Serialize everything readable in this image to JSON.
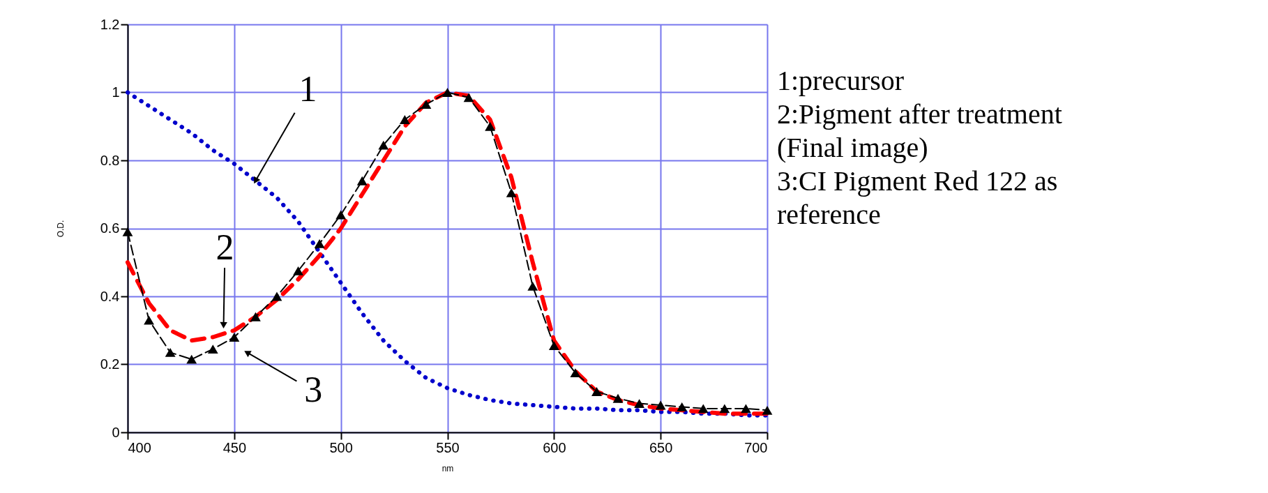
{
  "chart_data": {
    "type": "line",
    "xlabel": "nm",
    "ylabel": "O.D.",
    "x": [
      400,
      410,
      420,
      430,
      440,
      450,
      460,
      470,
      480,
      490,
      500,
      510,
      520,
      530,
      540,
      550,
      560,
      570,
      580,
      590,
      600,
      610,
      620,
      630,
      640,
      650,
      660,
      670,
      680,
      690,
      700
    ],
    "series": [
      {
        "color": "#0000cc",
        "line_style": "dotted",
        "marker": "none",
        "values": [
          1.0,
          0.96,
          0.92,
          0.88,
          0.83,
          0.79,
          0.74,
          0.69,
          0.62,
          0.53,
          0.44,
          0.35,
          0.27,
          0.21,
          0.16,
          0.13,
          0.11,
          0.095,
          0.085,
          0.08,
          0.075,
          0.07,
          0.07,
          0.065,
          0.065,
          0.06,
          0.06,
          0.055,
          0.055,
          0.05,
          0.05
        ]
      },
      {
        "color": "#ff0000",
        "line_style": "dashed",
        "marker": "none",
        "values": [
          0.5,
          0.38,
          0.3,
          0.27,
          0.28,
          0.3,
          0.34,
          0.39,
          0.45,
          0.52,
          0.6,
          0.7,
          0.8,
          0.9,
          0.97,
          1.0,
          0.99,
          0.92,
          0.75,
          0.5,
          0.27,
          0.18,
          0.12,
          0.095,
          0.08,
          0.07,
          0.065,
          0.06,
          0.055,
          0.055,
          0.055
        ]
      },
      {
        "color": "#000000",
        "line_style": "dashed",
        "marker": "triangle",
        "values": [
          0.59,
          0.33,
          0.235,
          0.215,
          0.245,
          0.28,
          0.34,
          0.4,
          0.475,
          0.555,
          0.64,
          0.74,
          0.845,
          0.92,
          0.965,
          1.0,
          0.985,
          0.9,
          0.705,
          0.43,
          0.255,
          0.175,
          0.12,
          0.1,
          0.085,
          0.08,
          0.075,
          0.07,
          0.07,
          0.07,
          0.065
        ]
      }
    ],
    "xlim": [
      400,
      700
    ],
    "xticks": [
      400,
      450,
      500,
      550,
      600,
      650,
      700
    ],
    "ylim": [
      0,
      1.2
    ],
    "yticks": [
      0,
      0.2,
      0.4,
      0.6,
      0.8,
      1,
      1.2
    ],
    "grid": true,
    "annotations": [
      {
        "text": "1",
        "x": 460,
        "y": 0.74
      },
      {
        "text": "2",
        "x": 445,
        "y": 0.315
      },
      {
        "text": "3",
        "x": 456,
        "y": 0.235
      },
      "1:precursor",
      "2:Pigment after treatment (Final image)",
      "3:CI Pigment Red 122 as reference"
    ]
  }
}
